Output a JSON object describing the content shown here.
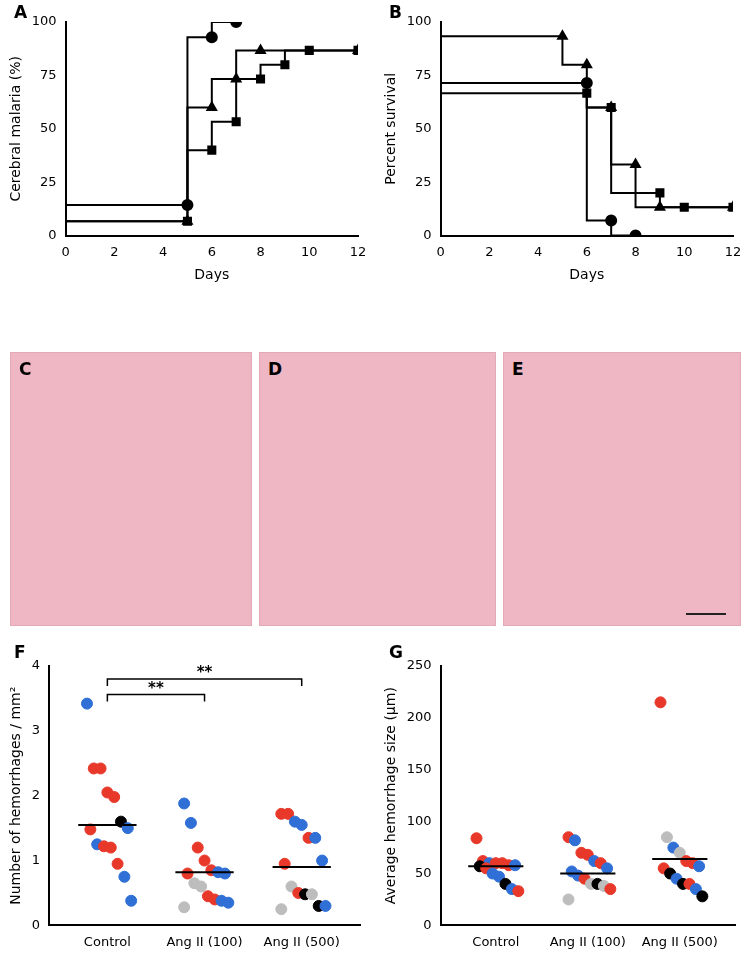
{
  "chart_data": [
    {
      "type": "line",
      "panel_label": "A",
      "x_label": "Days",
      "y_label": "Cerebral malaria (%)",
      "xlim": [
        0,
        12
      ],
      "xticks": [
        0,
        2,
        4,
        6,
        8,
        10,
        12
      ],
      "ylim": [
        0,
        100
      ],
      "yticks": [
        0,
        25,
        50,
        75,
        100
      ],
      "line_style": "stepped",
      "grid": false,
      "series": [
        {
          "marker": "circle",
          "color": "#000000",
          "x": [
            0,
            5,
            6,
            7
          ],
          "values": [
            0,
            14.3,
            92.9,
            100
          ]
        },
        {
          "marker": "triangle",
          "color": "#000000",
          "x": [
            0,
            5,
            6,
            7,
            8,
            12
          ],
          "values": [
            0,
            6.7,
            60,
            73.3,
            86.7,
            86.7
          ]
        },
        {
          "marker": "square",
          "color": "#000000",
          "x": [
            0,
            5,
            6,
            7,
            8,
            9,
            10,
            12
          ],
          "values": [
            0,
            6.7,
            40,
            53.3,
            73.3,
            80,
            86.7,
            86.7
          ]
        }
      ]
    },
    {
      "type": "line",
      "panel_label": "B",
      "x_label": "Days",
      "y_label": "Percent survival",
      "xlim": [
        0,
        12
      ],
      "xticks": [
        0,
        2,
        4,
        6,
        8,
        10,
        12
      ],
      "ylim": [
        0,
        100
      ],
      "yticks": [
        0,
        25,
        50,
        75,
        100
      ],
      "line_style": "stepped",
      "grid": false,
      "series": [
        {
          "marker": "circle",
          "color": "#000000",
          "x": [
            0,
            6,
            7,
            8
          ],
          "values": [
            100,
            71.4,
            7.1,
            0
          ]
        },
        {
          "marker": "triangle",
          "color": "#000000",
          "x": [
            0,
            5,
            6,
            7,
            8,
            9,
            12
          ],
          "values": [
            100,
            93.3,
            80,
            60,
            33.3,
            13.3,
            13.3
          ]
        },
        {
          "marker": "square",
          "color": "#000000",
          "x": [
            0,
            6,
            7,
            9,
            10,
            12
          ],
          "values": [
            100,
            66.7,
            60,
            20,
            13.3,
            13.3
          ]
        }
      ]
    },
    {
      "type": "dot",
      "panel_label": "F",
      "y_label": "Number of hemorrhages / mm²",
      "categories": [
        "Control",
        "Ang II (100)",
        "Ang II (500)"
      ],
      "ylim": [
        0,
        4
      ],
      "yticks": [
        0,
        1,
        2,
        3,
        4
      ],
      "grid": false,
      "values": [
        [
          3.42,
          2.42,
          2.42,
          2.05,
          1.98,
          1.6,
          1.5,
          1.48,
          1.25,
          1.22,
          1.2,
          0.95,
          0.75,
          0.38
        ],
        [
          1.88,
          1.58,
          1.2,
          1.0,
          0.85,
          0.82,
          0.8,
          0.8,
          0.65,
          0.6,
          0.45,
          0.4,
          0.38,
          0.35,
          0.28
        ],
        [
          1.72,
          1.72,
          1.6,
          1.55,
          1.35,
          1.35,
          1.0,
          0.95,
          0.6,
          0.5,
          0.48,
          0.48,
          0.3,
          0.3,
          0.25
        ]
      ],
      "colors": [
        [
          "#2f6fd6",
          "#e8382a",
          "#e8382a",
          "#e8382a",
          "#e8382a",
          "#000000",
          "#2f6fd6",
          "#e8382a",
          "#2f6fd6",
          "#e8382a",
          "#e8382a",
          "#e8382a",
          "#2f6fd6",
          "#2f6fd6"
        ],
        [
          "#2f6fd6",
          "#2f6fd6",
          "#e8382a",
          "#e8382a",
          "#e8382a",
          "#2f6fd6",
          "#2f6fd6",
          "#e8382a",
          "#bdbdbd",
          "#bdbdbd",
          "#e8382a",
          "#e8382a",
          "#2f6fd6",
          "#2f6fd6",
          "#bdbdbd"
        ],
        [
          "#e8382a",
          "#e8382a",
          "#2f6fd6",
          "#2f6fd6",
          "#e8382a",
          "#2f6fd6",
          "#2f6fd6",
          "#e8382a",
          "#bdbdbd",
          "#e8382a",
          "#000000",
          "#bdbdbd",
          "#000000",
          "#2f6fd6",
          "#bdbdbd"
        ]
      ],
      "means": [
        1.55,
        0.82,
        0.9
      ],
      "annotations": [
        {
          "from": "Control",
          "to": "Ang II (100)",
          "label": "**"
        },
        {
          "from": "Control",
          "to": "Ang II (500)",
          "label": "**"
        }
      ]
    },
    {
      "type": "dot",
      "panel_label": "G",
      "y_label": "Average hemorrhage size (µm)",
      "categories": [
        "Control",
        "Ang II (100)",
        "Ang II (500)"
      ],
      "ylim": [
        0,
        250
      ],
      "yticks": [
        0,
        50,
        100,
        150,
        200,
        250
      ],
      "grid": false,
      "values": [
        [
          84,
          62,
          60,
          60,
          60,
          58,
          58,
          57,
          55,
          50,
          47,
          40,
          35,
          33
        ],
        [
          85,
          82,
          70,
          68,
          62,
          60,
          55,
          52,
          48,
          45,
          40,
          40,
          38,
          35,
          25
        ],
        [
          215,
          85,
          75,
          70,
          62,
          60,
          57,
          55,
          50,
          45,
          40,
          40,
          35,
          28
        ]
      ],
      "colors": [
        [
          "#e8382a",
          "#e8382a",
          "#2f6fd6",
          "#e8382a",
          "#e8382a",
          "#e8382a",
          "#2f6fd6",
          "#000000",
          "#e8382a",
          "#2f6fd6",
          "#2f6fd6",
          "#000000",
          "#2f6fd6",
          "#e8382a"
        ],
        [
          "#e8382a",
          "#2f6fd6",
          "#e8382a",
          "#e8382a",
          "#2f6fd6",
          "#e8382a",
          "#2f6fd6",
          "#2f6fd6",
          "#2f6fd6",
          "#e8382a",
          "#bdbdbd",
          "#000000",
          "#bdbdbd",
          "#e8382a",
          "#bdbdbd"
        ],
        [
          "#e8382a",
          "#bdbdbd",
          "#2f6fd6",
          "#bdbdbd",
          "#e8382a",
          "#e8382a",
          "#2f6fd6",
          "#e8382a",
          "#000000",
          "#2f6fd6",
          "#000000",
          "#e8382a",
          "#2f6fd6",
          "#000000"
        ]
      ],
      "means": [
        57,
        50,
        64
      ]
    }
  ],
  "images": [
    {
      "label": "C"
    },
    {
      "label": "D"
    },
    {
      "label": "E"
    }
  ]
}
